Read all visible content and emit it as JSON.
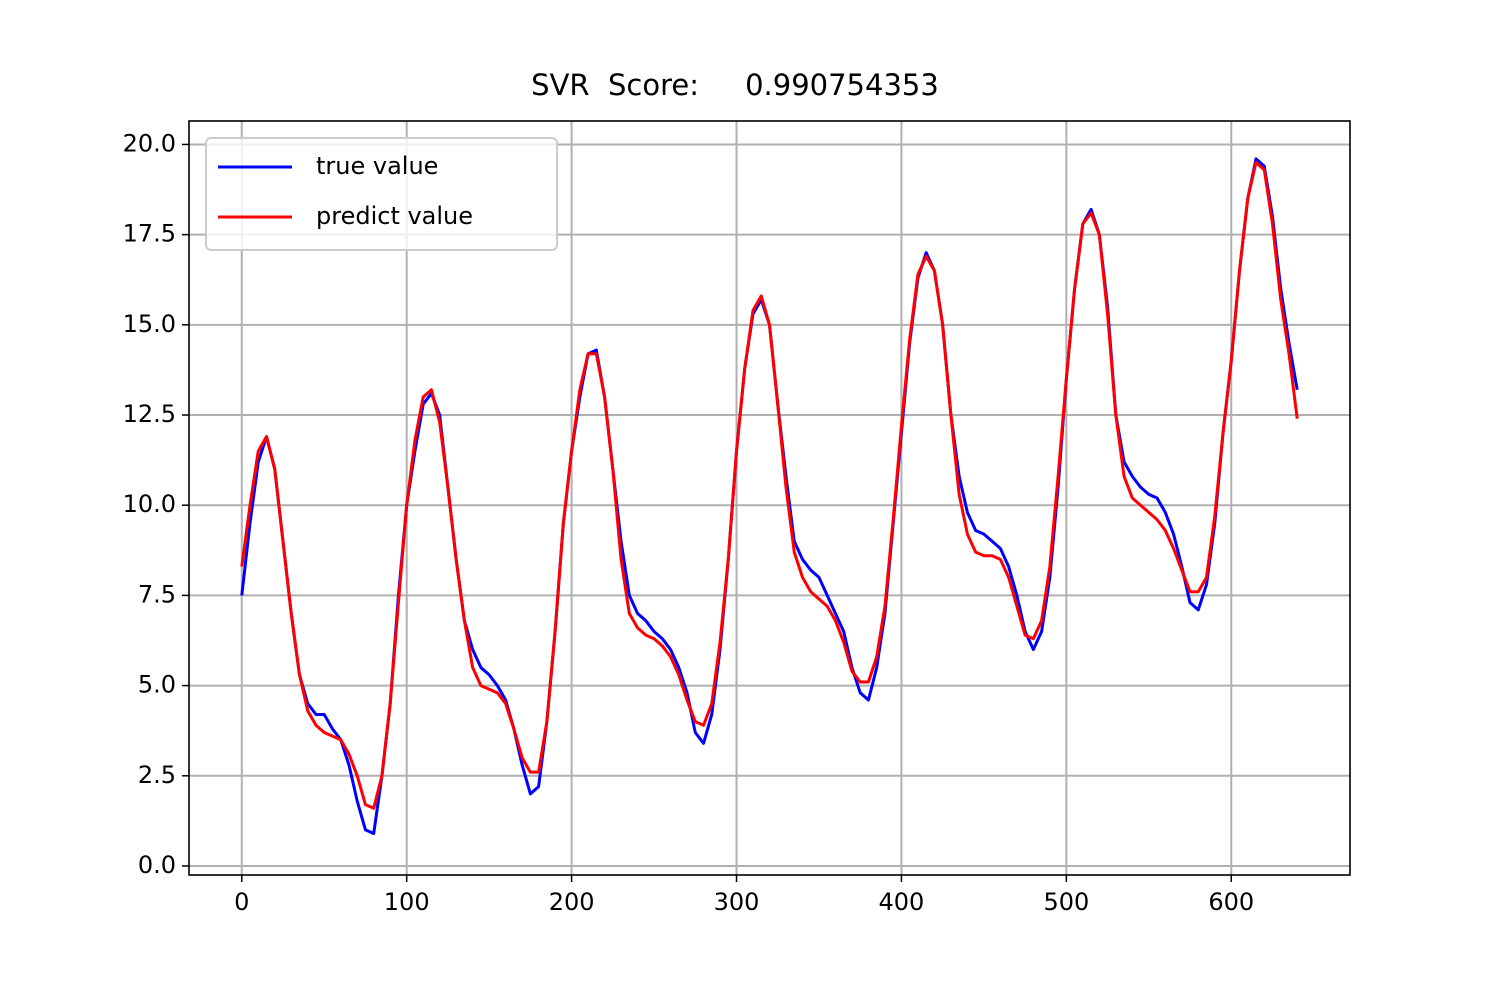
{
  "chart_data": {
    "type": "line",
    "title": "SVR  Score:     0.990754353",
    "x": [
      0,
      5,
      10,
      15,
      20,
      25,
      30,
      35,
      40,
      45,
      50,
      55,
      60,
      65,
      70,
      75,
      80,
      85,
      90,
      95,
      100,
      105,
      110,
      115,
      120,
      125,
      130,
      135,
      140,
      145,
      150,
      155,
      160,
      165,
      170,
      175,
      180,
      185,
      190,
      195,
      200,
      205,
      210,
      215,
      220,
      225,
      230,
      235,
      240,
      245,
      250,
      255,
      260,
      265,
      270,
      275,
      280,
      285,
      290,
      295,
      300,
      305,
      310,
      315,
      320,
      325,
      330,
      335,
      340,
      345,
      350,
      355,
      360,
      365,
      370,
      375,
      380,
      385,
      390,
      395,
      400,
      405,
      410,
      415,
      420,
      425,
      430,
      435,
      440,
      445,
      450,
      455,
      460,
      465,
      470,
      475,
      480,
      485,
      490,
      495,
      500,
      505,
      510,
      515,
      520,
      525,
      530,
      535,
      540,
      545,
      550,
      555,
      560,
      565,
      570,
      575,
      580,
      585,
      590,
      595,
      600,
      605,
      610,
      615,
      620,
      625,
      630,
      635,
      640
    ],
    "series": [
      {
        "name": "true value",
        "color": "#0000ff",
        "values": [
          7.5,
          9.5,
          11.2,
          11.9,
          11.0,
          9.0,
          7.0,
          5.3,
          4.5,
          4.2,
          4.2,
          3.8,
          3.5,
          2.8,
          1.8,
          1.0,
          0.9,
          2.5,
          4.5,
          7.5,
          10.0,
          11.5,
          12.8,
          13.1,
          12.5,
          10.5,
          8.5,
          6.8,
          6.0,
          5.5,
          5.3,
          5.0,
          4.6,
          3.8,
          2.8,
          2.0,
          2.2,
          4.0,
          6.5,
          9.5,
          11.5,
          13.0,
          14.2,
          14.3,
          13.0,
          11.0,
          9.0,
          7.5,
          7.0,
          6.8,
          6.5,
          6.3,
          6.0,
          5.5,
          4.8,
          3.7,
          3.4,
          4.2,
          6.0,
          8.5,
          11.5,
          13.8,
          15.3,
          15.7,
          15.0,
          12.8,
          10.8,
          9.0,
          8.5,
          8.2,
          8.0,
          7.5,
          7.0,
          6.5,
          5.5,
          4.8,
          4.6,
          5.5,
          7.0,
          9.5,
          12.0,
          14.5,
          16.3,
          17.0,
          16.5,
          15.0,
          12.5,
          10.8,
          9.8,
          9.3,
          9.2,
          9.0,
          8.8,
          8.3,
          7.5,
          6.5,
          6.0,
          6.5,
          8.0,
          10.5,
          13.5,
          16.0,
          17.8,
          18.2,
          17.5,
          15.5,
          12.5,
          11.2,
          10.8,
          10.5,
          10.3,
          10.2,
          9.8,
          9.2,
          8.3,
          7.3,
          7.1,
          7.8,
          9.5,
          12.0,
          14.0,
          16.5,
          18.5,
          19.6,
          19.4,
          18.0,
          16.0,
          14.5,
          13.2
        ]
      },
      {
        "name": "predict value",
        "color": "#ff0000",
        "values": [
          8.3,
          10.0,
          11.5,
          11.9,
          11.0,
          9.0,
          7.0,
          5.3,
          4.3,
          3.9,
          3.7,
          3.6,
          3.5,
          3.1,
          2.5,
          1.7,
          1.6,
          2.5,
          4.5,
          7.3,
          10.0,
          11.8,
          13.0,
          13.2,
          12.3,
          10.5,
          8.5,
          6.8,
          5.5,
          5.0,
          4.9,
          4.8,
          4.5,
          3.8,
          3.0,
          2.6,
          2.6,
          4.0,
          6.5,
          9.5,
          11.5,
          13.2,
          14.2,
          14.2,
          13.0,
          11.0,
          8.5,
          7.0,
          6.6,
          6.4,
          6.3,
          6.1,
          5.8,
          5.3,
          4.6,
          4.0,
          3.9,
          4.5,
          6.2,
          8.5,
          11.5,
          13.8,
          15.4,
          15.8,
          15.0,
          12.8,
          10.5,
          8.7,
          8.0,
          7.6,
          7.4,
          7.2,
          6.8,
          6.2,
          5.4,
          5.1,
          5.1,
          5.8,
          7.2,
          9.6,
          12.2,
          14.6,
          16.4,
          16.9,
          16.5,
          15.0,
          12.5,
          10.3,
          9.2,
          8.7,
          8.6,
          8.6,
          8.5,
          8.0,
          7.2,
          6.4,
          6.3,
          6.8,
          8.3,
          10.8,
          13.5,
          16.0,
          17.8,
          18.1,
          17.5,
          15.3,
          12.5,
          10.8,
          10.2,
          10.0,
          9.8,
          9.6,
          9.3,
          8.8,
          8.2,
          7.6,
          7.6,
          8.0,
          9.7,
          12.0,
          14.0,
          16.5,
          18.5,
          19.5,
          19.3,
          17.8,
          15.7,
          14.2,
          12.4
        ]
      }
    ],
    "xlim": [
      -32,
      672
    ],
    "ylim": [
      -0.25,
      20.65
    ],
    "xticks": [
      0,
      100,
      200,
      300,
      400,
      500,
      600
    ],
    "yticks": [
      {
        "value": 0,
        "label": "0.0"
      },
      2.5,
      {
        "value": 5,
        "label": "5.0"
      },
      7.5,
      {
        "value": 10,
        "label": "10.0"
      },
      12.5,
      {
        "value": 15,
        "label": "15.0"
      },
      17.5,
      {
        "value": 20,
        "label": "20.0"
      }
    ],
    "grid": true,
    "legend": "upper left"
  }
}
